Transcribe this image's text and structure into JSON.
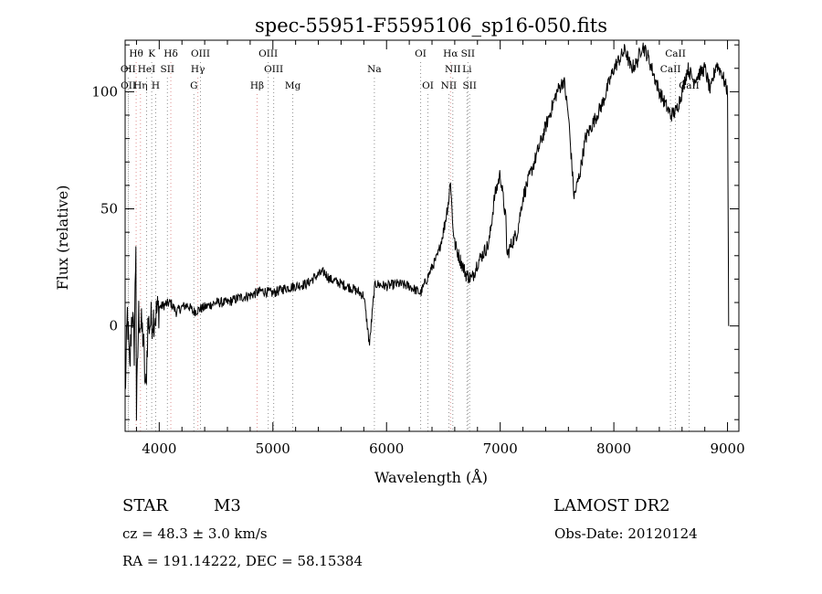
{
  "chart_data": {
    "type": "line",
    "title": "spec-55951-F5595106_sp16-050.fits",
    "xlabel": "Wavelength (Å)",
    "ylabel": "Flux (relative)",
    "xlim": [
      3700,
      9100
    ],
    "ylim": [
      -45,
      122
    ],
    "x_ticks": [
      4000,
      5000,
      6000,
      7000,
      8000,
      9000
    ],
    "x_tick_labels": [
      "4000",
      "5000",
      "6000",
      "7000",
      "8000",
      "9000"
    ],
    "y_ticks": [
      0,
      50,
      100
    ],
    "y_tick_labels": [
      "0",
      "50",
      "100"
    ],
    "x_minor_step": 200,
    "y_minor_step": 10,
    "grid": false,
    "series": [
      {
        "x": [
          3700,
          3720,
          3740,
          3760,
          3780,
          3795,
          3800,
          3820,
          3840,
          3860,
          3880,
          3900,
          3925,
          3950,
          3970,
          4000,
          4050,
          4100,
          4150,
          4200,
          4250,
          4300,
          4350,
          4400,
          4500,
          4600,
          4700,
          4800,
          4900,
          5000,
          5100,
          5200,
          5300,
          5400,
          5450,
          5500,
          5600,
          5700,
          5800,
          5850,
          5890,
          5900,
          6000,
          6100,
          6200,
          6300,
          6400,
          6450,
          6500,
          6550,
          6563,
          6580,
          6600,
          6650,
          6700,
          6750,
          6800,
          6900,
          6950,
          7000,
          7050,
          7060,
          7100,
          7150,
          7200,
          7300,
          7400,
          7500,
          7560,
          7600,
          7650,
          7700,
          7750,
          7800,
          7900,
          8000,
          8100,
          8150,
          8200,
          8250,
          8300,
          8400,
          8450,
          8500,
          8550,
          8600,
          8650,
          8700,
          8800,
          8850,
          8900,
          8950,
          9000,
          9010
        ],
        "y": [
          -30,
          5,
          -20,
          8,
          -10,
          38,
          -38,
          5,
          0,
          -5,
          -30,
          0,
          2,
          4,
          5,
          8,
          9,
          10,
          6,
          8,
          9,
          6,
          7,
          8,
          10,
          10,
          12,
          13,
          15,
          14,
          16,
          17,
          18,
          22,
          23,
          20,
          18,
          16,
          13,
          -8,
          14,
          18,
          17,
          18,
          17,
          14,
          25,
          30,
          40,
          55,
          63,
          45,
          35,
          28,
          22,
          20,
          27,
          35,
          55,
          65,
          45,
          30,
          35,
          40,
          55,
          70,
          85,
          100,
          105,
          90,
          55,
          65,
          80,
          85,
          95,
          110,
          118,
          110,
          112,
          120,
          115,
          100,
          95,
          90,
          92,
          100,
          110,
          105,
          110,
          100,
          112,
          108,
          100,
          0
        ],
        "linestyle": "solid"
      }
    ],
    "lines": [
      {
        "label": "Hθ",
        "x": 3797,
        "row": 0,
        "color": "#e09090"
      },
      {
        "label": "K",
        "x": 3934,
        "row": 0,
        "color": "#909090"
      },
      {
        "label": "Hδ",
        "x": 4102,
        "row": 0,
        "color": "#e09090"
      },
      {
        "label": "OIII",
        "x": 4363,
        "row": 0,
        "color": "#909090"
      },
      {
        "label": "OIII",
        "x": 4959,
        "row": 0,
        "color": "#909090"
      },
      {
        "label": "OI",
        "x": 6300,
        "row": 0,
        "color": "#909090"
      },
      {
        "label": "Hα",
        "x": 6563,
        "row": 0,
        "color": "#e09090"
      },
      {
        "label": "SII",
        "x": 6716,
        "row": 0,
        "color": "#909090"
      },
      {
        "label": "CaII",
        "x": 8542,
        "row": 0,
        "color": "#909090"
      },
      {
        "label": "OII",
        "x": 3727,
        "row": 1,
        "color": "#909090"
      },
      {
        "label": "HeI",
        "x": 3889,
        "row": 1,
        "color": "#909090"
      },
      {
        "label": "SII",
        "x": 4072,
        "row": 1,
        "color": "#909090"
      },
      {
        "label": "Hγ",
        "x": 4340,
        "row": 1,
        "color": "#e09090"
      },
      {
        "label": "OIII",
        "x": 5007,
        "row": 1,
        "color": "#909090"
      },
      {
        "label": "Na",
        "x": 5893,
        "row": 1,
        "color": "#909090"
      },
      {
        "label": "NII",
        "x": 6583,
        "row": 1,
        "color": "#909090"
      },
      {
        "label": "Li",
        "x": 6708,
        "row": 1,
        "color": "#909090"
      },
      {
        "label": "CaII",
        "x": 8498,
        "row": 1,
        "color": "#909090"
      },
      {
        "label": "OII",
        "x": 3729,
        "row": 2,
        "color": "#909090"
      },
      {
        "label": "Hη",
        "x": 3835,
        "row": 2,
        "color": "#e09090"
      },
      {
        "label": "H",
        "x": 3969,
        "row": 2,
        "color": "#909090"
      },
      {
        "label": "G",
        "x": 4305,
        "row": 2,
        "color": "#909090"
      },
      {
        "label": "Hβ",
        "x": 4861,
        "row": 2,
        "color": "#e09090"
      },
      {
        "label": "Mg",
        "x": 5175,
        "row": 2,
        "color": "#909090"
      },
      {
        "label": "OI",
        "x": 6364,
        "row": 2,
        "color": "#909090"
      },
      {
        "label": "NII",
        "x": 6548,
        "row": 2,
        "color": "#909090"
      },
      {
        "label": "SII",
        "x": 6731,
        "row": 2,
        "color": "#909090"
      },
      {
        "label": "CaII",
        "x": 8662,
        "row": 2,
        "color": "#909090"
      }
    ]
  },
  "info": {
    "object_class": "STAR",
    "subclass": "M3",
    "survey": "LAMOST DR2",
    "cz": "cz = 48.3 ± 3.0 km/s",
    "obs_date": "Obs-Date: 20120124",
    "coords": "RA = 191.14222, DEC =  58.15384"
  }
}
